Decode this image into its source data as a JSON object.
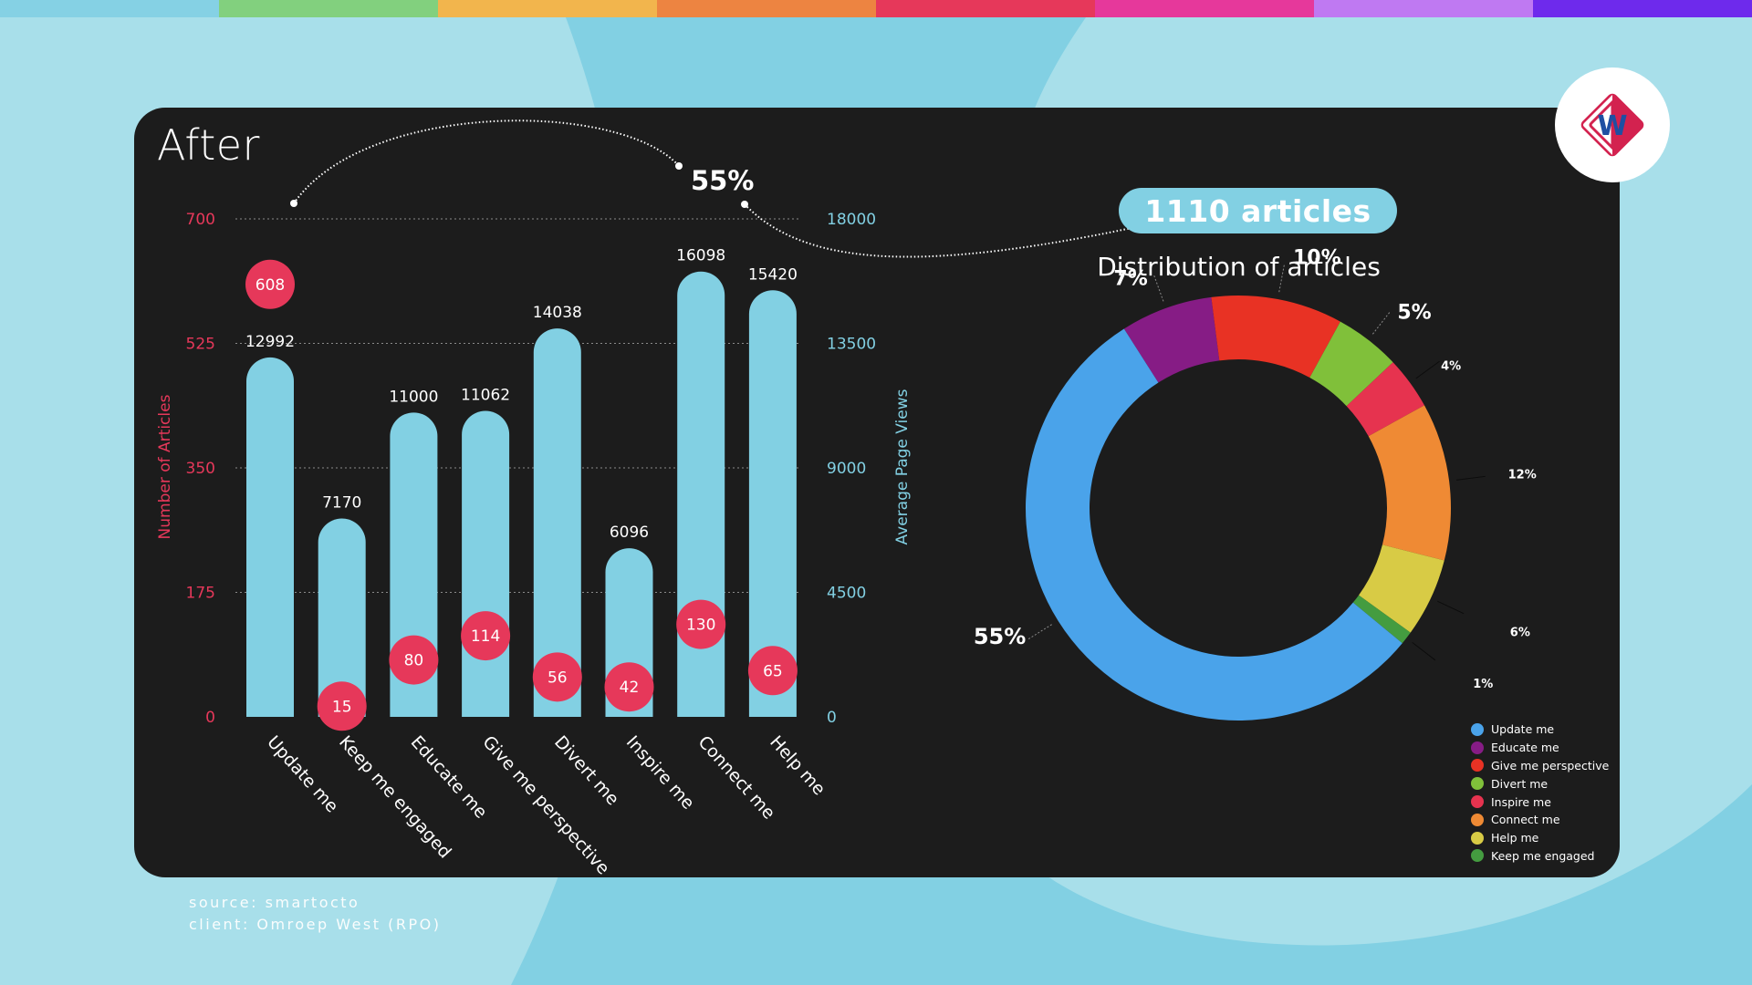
{
  "palette": {
    "stripe": [
      "#85d1e4",
      "#82d07e",
      "#f2b54d",
      "#ed8441",
      "#e6385a",
      "#e6389b",
      "#bf79f2",
      "#6e2aec"
    ],
    "background_light": "#a8dfea",
    "background_dark": "#82d0e3",
    "card": "#1c1c1c",
    "bar": "#82d0e3",
    "bubble": "#e6385a",
    "left_axis": "#e6385a",
    "right_axis": "#82d0e3"
  },
  "header": {
    "title": "After",
    "connector_label": "55%"
  },
  "summary": {
    "total_articles": "1110 articles",
    "distribution_title": "Distribution of articles"
  },
  "logo": {
    "icon": "omroep-west-logo-icon",
    "letter": "W"
  },
  "footer": {
    "source": "source: smartocto",
    "client": "client: Omroep West (RPO)"
  },
  "chart_data": [
    {
      "type": "bar",
      "title": "After",
      "categories": [
        "Update me",
        "Keep me engaged",
        "Educate me",
        "Give me perspective",
        "Divert me",
        "Inspire me",
        "Connect me",
        "Help me"
      ],
      "series": [
        {
          "name": "Average Page Views",
          "axis": "right",
          "values": [
            12992,
            7170,
            11000,
            11062,
            14038,
            6096,
            16098,
            15420
          ]
        },
        {
          "name": "Number of Articles",
          "axis": "left",
          "values": [
            608,
            15,
            80,
            114,
            56,
            42,
            130,
            65
          ]
        }
      ],
      "ylabel_left": "Number of Articles",
      "ylabel_right": "Average Page Views",
      "ylim_left": [
        0,
        700
      ],
      "ylim_right": [
        0,
        18000
      ],
      "yticks_left": [
        "0",
        "175",
        "350",
        "525",
        "700"
      ],
      "yticks_right": [
        "0",
        "4500",
        "9000",
        "13500",
        "18000"
      ],
      "grid": true,
      "annotation": "55%"
    },
    {
      "type": "pie",
      "variant": "donut",
      "title": "Distribution of articles",
      "subtitle": "1110 articles",
      "slices": [
        {
          "label": "Update me",
          "value": 55,
          "display": "55%",
          "color": "#4aa3ea"
        },
        {
          "label": "Educate me",
          "value": 7,
          "display": "7%",
          "color": "#861c85"
        },
        {
          "label": "Give me perspective",
          "value": 10,
          "display": "10%",
          "color": "#e83224"
        },
        {
          "label": "Divert me",
          "value": 5,
          "display": "5%",
          "color": "#80c03a"
        },
        {
          "label": "Inspire me",
          "value": 4,
          "display": "4%",
          "color": "#e6334f"
        },
        {
          "label": "Connect me",
          "value": 12,
          "display": "12%",
          "color": "#ef8a34"
        },
        {
          "label": "Help me",
          "value": 6,
          "display": "6%",
          "color": "#d8cb45"
        },
        {
          "label": "Keep me engaged",
          "value": 1,
          "display": "1%",
          "color": "#449c40"
        }
      ],
      "legend": [
        {
          "label": "Update me",
          "color": "#4aa3ea"
        },
        {
          "label": "Educate me",
          "color": "#861c85"
        },
        {
          "label": "Give me perspective",
          "color": "#e83224"
        },
        {
          "label": "Divert me",
          "color": "#80c03a"
        },
        {
          "label": "Inspire me",
          "color": "#e6334f"
        },
        {
          "label": "Connect me",
          "color": "#ef8a34"
        },
        {
          "label": "Help me",
          "color": "#d8cb45"
        },
        {
          "label": "Keep me engaged",
          "color": "#449c40"
        }
      ],
      "legend_position": "bottom-right"
    }
  ]
}
